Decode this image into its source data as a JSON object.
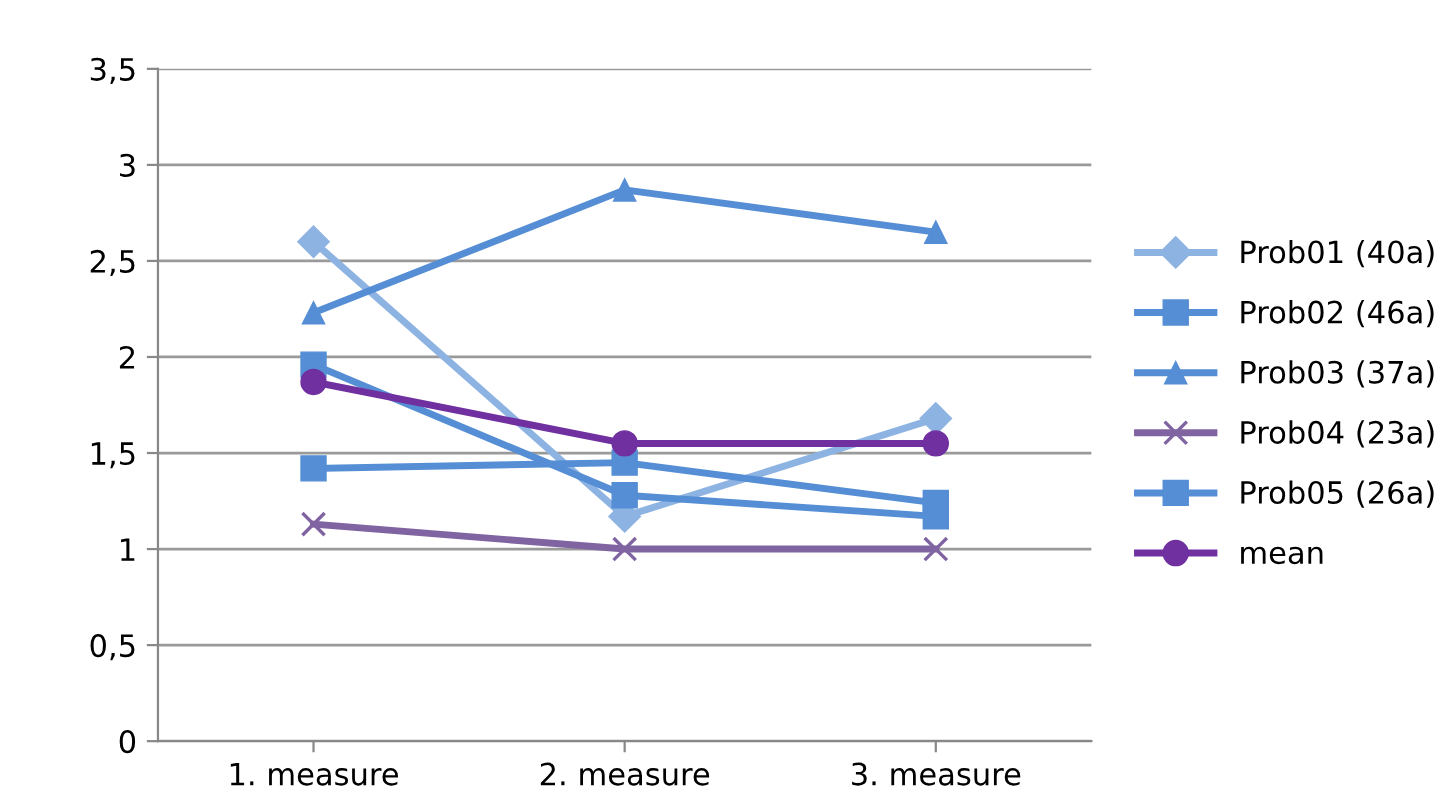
{
  "chart_data": {
    "type": "line",
    "categories": [
      "1. measure",
      "2. measure",
      "3. measure"
    ],
    "series": [
      {
        "name": "Prob01 (40a)",
        "color": "#8db3e2",
        "marker": "diamond",
        "values": [
          2.6,
          1.17,
          1.68
        ]
      },
      {
        "name": "Prob02 (46a)",
        "color": "#558ed5",
        "marker": "square",
        "values": [
          1.96,
          1.28,
          1.17
        ]
      },
      {
        "name": "Prob03 (37a)",
        "color": "#558ed5",
        "marker": "triangle",
        "values": [
          2.23,
          2.87,
          2.65
        ]
      },
      {
        "name": "Prob04 (23a)",
        "color": "#8064a2",
        "marker": "cross",
        "values": [
          1.13,
          1.0,
          1.0
        ]
      },
      {
        "name": "Prob05 (26a)",
        "color": "#558ed5",
        "marker": "square",
        "values": [
          1.42,
          1.45,
          1.24
        ]
      },
      {
        "name": "mean",
        "color": "#7030a0",
        "marker": "circle",
        "values": [
          1.87,
          1.55,
          1.55
        ]
      }
    ],
    "ylim": [
      0,
      3.5
    ],
    "yticks": [
      {
        "value": 0,
        "label": "0"
      },
      {
        "value": 0.5,
        "label": "0,5"
      },
      {
        "value": 1,
        "label": "1"
      },
      {
        "value": 1.5,
        "label": "1,5"
      },
      {
        "value": 2,
        "label": "2"
      },
      {
        "value": 2.5,
        "label": "2,5"
      },
      {
        "value": 3,
        "label": "3"
      },
      {
        "value": 3.5,
        "label": "3,5"
      }
    ],
    "grid": "y",
    "legend": "right"
  }
}
